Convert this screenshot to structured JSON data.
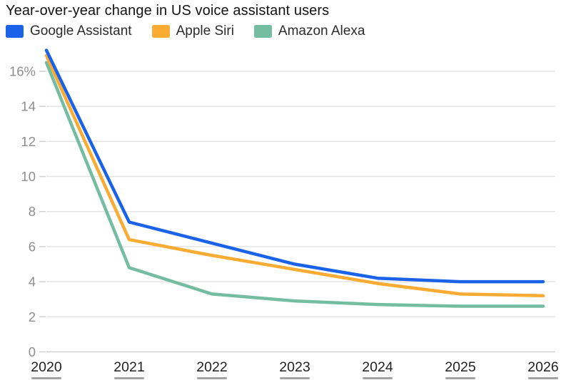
{
  "header": {
    "title": "Year-over-year change in US voice assistant users"
  },
  "chart_data": {
    "type": "line",
    "title": "Year-over-year change in US voice assistant users",
    "x": [
      "2020",
      "2021",
      "2022",
      "2023",
      "2024",
      "2025",
      "2026"
    ],
    "series": [
      {
        "name": "Google Assistant",
        "color": "#1A63E8",
        "values": [
          17.2,
          7.4,
          6.2,
          5.0,
          4.2,
          4.0,
          4.0
        ]
      },
      {
        "name": "Apple Siri",
        "color": "#F9AB33",
        "values": [
          16.9,
          6.4,
          5.5,
          4.7,
          3.9,
          3.3,
          3.2
        ]
      },
      {
        "name": "Amazon Alexa",
        "color": "#74BDA2",
        "values": [
          16.5,
          4.8,
          3.3,
          2.9,
          2.7,
          2.6,
          2.6
        ]
      }
    ],
    "unit": "%",
    "y_ticks": [
      {
        "value": 0,
        "label": "0"
      },
      {
        "value": 2,
        "label": "2"
      },
      {
        "value": 4,
        "label": "4"
      },
      {
        "value": 6,
        "label": "6"
      },
      {
        "value": 8,
        "label": "8"
      },
      {
        "value": 10,
        "label": "10"
      },
      {
        "value": 12,
        "label": "12"
      },
      {
        "value": 14,
        "label": "14"
      },
      {
        "value": 16,
        "label": "16%"
      }
    ],
    "ylim": [
      0,
      17.6
    ],
    "grid": true,
    "legend_position": "top-left"
  },
  "colors": {
    "background": "#FFFFFF",
    "grid_line": "#E4E4E4",
    "baseline": "#CFCFCF",
    "tick": "#CFCFCF",
    "y_label": "#8E8E8E",
    "x_label": "#1F1F1F",
    "title_text": "#121212",
    "legend_text": "#2B2B2B",
    "bottom_dash": "#555555"
  }
}
